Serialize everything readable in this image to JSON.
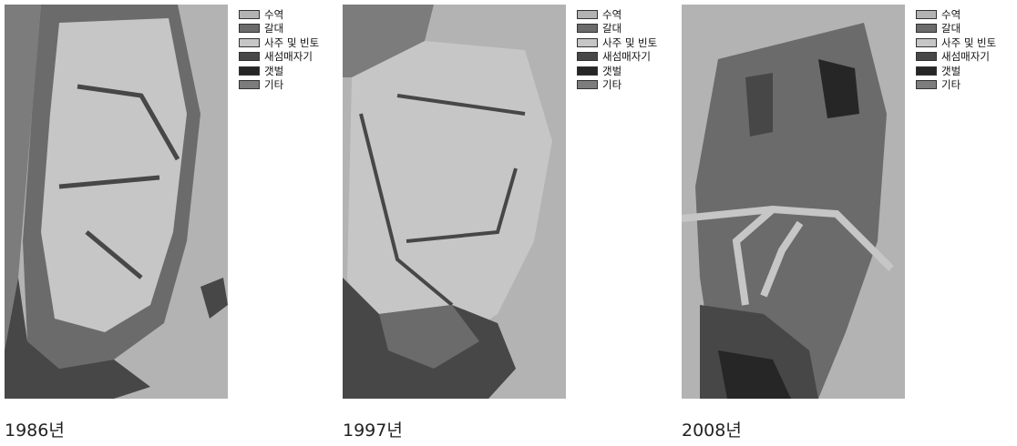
{
  "panels": [
    {
      "caption": "1986년"
    },
    {
      "caption": "1997년"
    },
    {
      "caption": "2008년"
    }
  ],
  "legend": [
    {
      "label": "수역",
      "color": "#b3b3b3"
    },
    {
      "label": "갈대",
      "color": "#6b6b6b"
    },
    {
      "label": "사주 및 빈토",
      "color": "#c6c6c6"
    },
    {
      "label": "새섬매자기",
      "color": "#474747"
    },
    {
      "label": "갯벌",
      "color": "#262626"
    },
    {
      "label": "기타",
      "color": "#7c7c7c"
    }
  ]
}
